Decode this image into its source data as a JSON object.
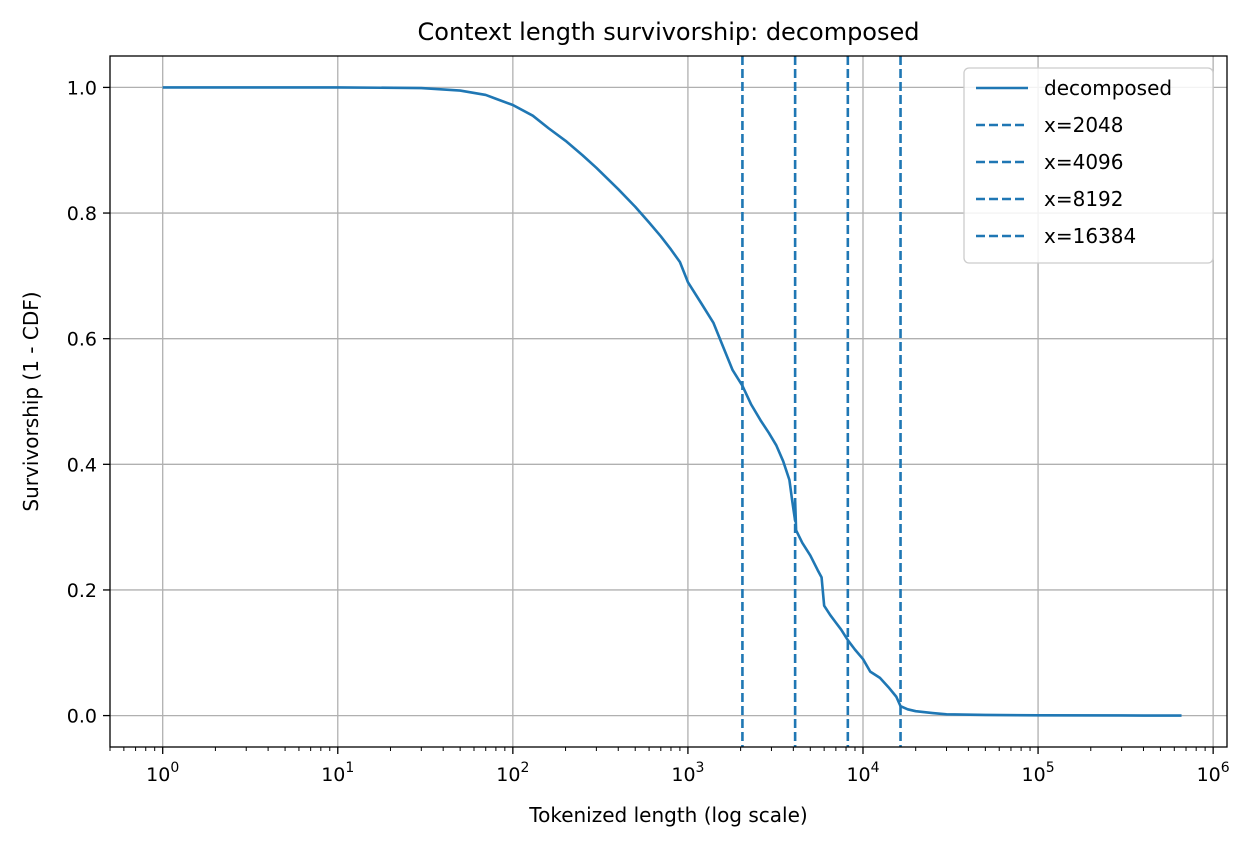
{
  "chart_data": {
    "type": "line",
    "title": "Context length survivorship: decomposed",
    "xlabel": "Tokenized length (log scale)",
    "ylabel": "Survivorship (1 - CDF)",
    "x_scale": "log",
    "xlim": [
      0.5,
      1200000
    ],
    "ylim": [
      -0.05,
      1.05
    ],
    "grid": true,
    "legend_position": "top-right",
    "colors": {
      "series": "#1f77b4",
      "grid": "#b0b0b0"
    },
    "x_ticks": [
      {
        "value": 1,
        "base": "10",
        "exp": "0"
      },
      {
        "value": 10,
        "base": "10",
        "exp": "1"
      },
      {
        "value": 100,
        "base": "10",
        "exp": "2"
      },
      {
        "value": 1000,
        "base": "10",
        "exp": "3"
      },
      {
        "value": 10000,
        "base": "10",
        "exp": "4"
      },
      {
        "value": 100000,
        "base": "10",
        "exp": "5"
      },
      {
        "value": 1000000,
        "base": "10",
        "exp": "6"
      }
    ],
    "y_ticks": [
      {
        "value": 0.0,
        "label": "0.0"
      },
      {
        "value": 0.2,
        "label": "0.2"
      },
      {
        "value": 0.4,
        "label": "0.4"
      },
      {
        "value": 0.6,
        "label": "0.6"
      },
      {
        "value": 0.8,
        "label": "0.8"
      },
      {
        "value": 1.0,
        "label": "1.0"
      }
    ],
    "series": [
      {
        "name": "decomposed",
        "points": [
          [
            1,
            1.0
          ],
          [
            10,
            1.0
          ],
          [
            30,
            0.999
          ],
          [
            50,
            0.995
          ],
          [
            70,
            0.988
          ],
          [
            80,
            0.982
          ],
          [
            100,
            0.972
          ],
          [
            130,
            0.955
          ],
          [
            160,
            0.935
          ],
          [
            200,
            0.915
          ],
          [
            250,
            0.892
          ],
          [
            300,
            0.872
          ],
          [
            400,
            0.838
          ],
          [
            500,
            0.81
          ],
          [
            600,
            0.785
          ],
          [
            700,
            0.763
          ],
          [
            800,
            0.742
          ],
          [
            900,
            0.722
          ],
          [
            1000,
            0.69
          ],
          [
            1200,
            0.655
          ],
          [
            1400,
            0.625
          ],
          [
            1600,
            0.585
          ],
          [
            1800,
            0.55
          ],
          [
            2048,
            0.525
          ],
          [
            2300,
            0.495
          ],
          [
            2600,
            0.47
          ],
          [
            2900,
            0.45
          ],
          [
            3200,
            0.43
          ],
          [
            3500,
            0.405
          ],
          [
            3800,
            0.375
          ],
          [
            3950,
            0.34
          ],
          [
            4096,
            0.31
          ],
          [
            4100,
            0.34
          ],
          [
            4150,
            0.295
          ],
          [
            4500,
            0.275
          ],
          [
            5000,
            0.255
          ],
          [
            5500,
            0.232
          ],
          [
            5800,
            0.22
          ],
          [
            6000,
            0.175
          ],
          [
            6500,
            0.16
          ],
          [
            7000,
            0.148
          ],
          [
            7500,
            0.137
          ],
          [
            8192,
            0.12
          ],
          [
            9000,
            0.105
          ],
          [
            10000,
            0.09
          ],
          [
            11000,
            0.07
          ],
          [
            12500,
            0.06
          ],
          [
            14000,
            0.045
          ],
          [
            15500,
            0.03
          ],
          [
            16384,
            0.015
          ],
          [
            18000,
            0.01
          ],
          [
            20000,
            0.007
          ],
          [
            25000,
            0.004
          ],
          [
            30000,
            0.002
          ],
          [
            50000,
            0.001
          ],
          [
            100000,
            0.0005
          ],
          [
            300000,
            0.0002
          ],
          [
            660000,
            0.0
          ]
        ]
      }
    ],
    "vlines": [
      {
        "x": 2048,
        "label": "x=2048"
      },
      {
        "x": 4096,
        "label": "x=4096"
      },
      {
        "x": 8192,
        "label": "x=8192"
      },
      {
        "x": 16384,
        "label": "x=16384"
      }
    ]
  }
}
